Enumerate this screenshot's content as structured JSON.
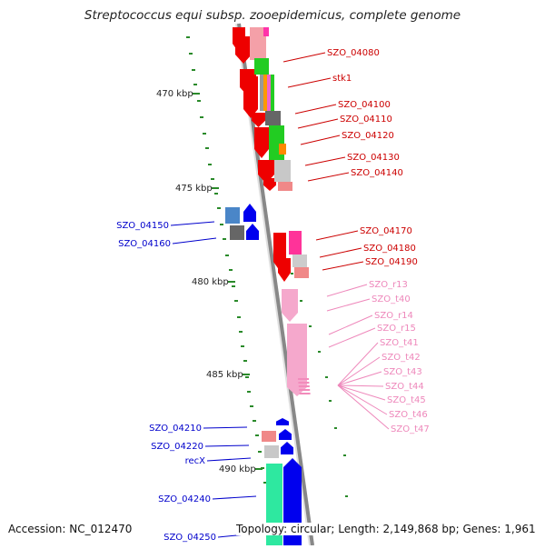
{
  "title": "Streptococcus equi subsp. zooepidemicus, complete genome",
  "footer": {
    "accession": "Accession: NC_012470",
    "topology": "Topology: circular; Length: 2,149,868 bp; Genes: 1,961"
  },
  "ruler": {
    "labels": [
      "470 kbp",
      "475 kbp",
      "480 kbp",
      "485 kbp",
      "490 kbp"
    ],
    "color": "#2a8a2a"
  },
  "colors": {
    "forward_label": "#cc0000",
    "reverse_label": "#0000cc",
    "rna_label": "#ee88bb",
    "backbone": "#888888"
  },
  "forward_genes": [
    {
      "label": "SZO_04080",
      "color": "#ee0000"
    },
    {
      "label": "stk1",
      "color": "#ee0000"
    },
    {
      "label": "SZO_04100",
      "color": "#ee0000"
    },
    {
      "label": "SZO_04110",
      "color": "#ee0000"
    },
    {
      "label": "SZO_04120",
      "color": "#ee0000"
    },
    {
      "label": "SZO_04130",
      "color": "#ee0000"
    },
    {
      "label": "SZO_04140",
      "color": "#ee0000"
    },
    {
      "label": "SZO_04170",
      "color": "#ee0000"
    },
    {
      "label": "SZO_04180",
      "color": "#ee0000"
    },
    {
      "label": "SZO_04190",
      "color": "#ee0000"
    }
  ],
  "reverse_genes": [
    {
      "label": "SZO_04150",
      "color": "#0000ee"
    },
    {
      "label": "SZO_04160",
      "color": "#0000ee"
    },
    {
      "label": "SZO_04210",
      "color": "#0000ee"
    },
    {
      "label": "SZO_04220",
      "color": "#0000ee"
    },
    {
      "label": "recX",
      "color": "#0000ee"
    },
    {
      "label": "SZO_04240",
      "color": "#0000ee"
    },
    {
      "label": "SZO_04250",
      "color": "#0000ee"
    }
  ],
  "rna_features": [
    "SZO_r13",
    "SZO_t40",
    "SZO_r14",
    "SZO_r15",
    "SZO_t41",
    "SZO_t42",
    "SZO_t43",
    "SZO_t44",
    "SZO_t45",
    "SZO_t46",
    "SZO_t47"
  ]
}
